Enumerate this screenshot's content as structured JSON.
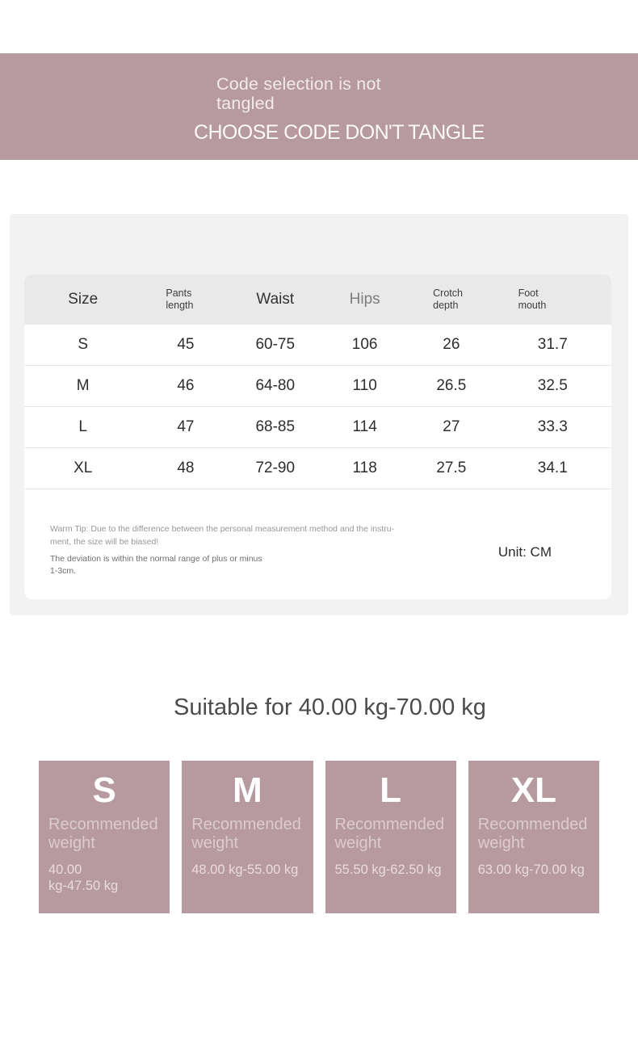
{
  "colors": {
    "accent": "#b79aa0",
    "card_bg": "#f2f2f3",
    "table_header_bg": "#e9e9e9"
  },
  "banner": {
    "title_lines": [
      "Code selection is not",
      "tangled"
    ],
    "subtitle": "CHOOSE CODE DON'T TANGLE"
  },
  "size_table": {
    "columns": [
      {
        "label": "Size"
      },
      {
        "label": "Pants\nlength",
        "small": true
      },
      {
        "label": "Waist"
      },
      {
        "label": "Hips",
        "muted": true
      },
      {
        "label": "Crotch\ndepth",
        "small": true
      },
      {
        "label": "Foot\nmouth",
        "small": true
      }
    ],
    "column_widths": [
      "20%",
      "15%",
      "15.5%",
      "15%",
      "14.5%",
      "20%"
    ],
    "rows": [
      {
        "size": "S",
        "values": [
          "45",
          "60-75",
          "106",
          "26",
          "31.7"
        ]
      },
      {
        "size": "M",
        "values": [
          "46",
          "64-80",
          "110",
          "26.5",
          "32.5"
        ]
      },
      {
        "size": "L",
        "values": [
          "47",
          "68-85",
          "114",
          "27",
          "33.3"
        ]
      },
      {
        "size": "XL",
        "values": [
          "48",
          "72-90",
          "118",
          "27.5",
          "34.1"
        ]
      }
    ],
    "note_paragraph_1": "Warm Tip: Due to the difference between the personal measurement method and the instru-\nment, the size will be biased!",
    "note_paragraph_2": "The deviation is within the normal range of plus or minus\n1-3cm.",
    "unit_label": "Unit: CM"
  },
  "suitability": {
    "heading": "Suitable for 40.00 kg-70.00 kg"
  },
  "size_boxes": [
    {
      "size": "S",
      "label": "Recommended weight",
      "range": "40.00\nkg-47.50 kg"
    },
    {
      "size": "M",
      "label": "Recommended weight",
      "range": "48.00 kg-55.00 kg"
    },
    {
      "size": "L",
      "label": "Recommended weight",
      "range": "55.50 kg-62.50 kg"
    },
    {
      "size": "XL",
      "label": "Recommended weight",
      "range": "63.00 kg-70.00 kg"
    }
  ]
}
